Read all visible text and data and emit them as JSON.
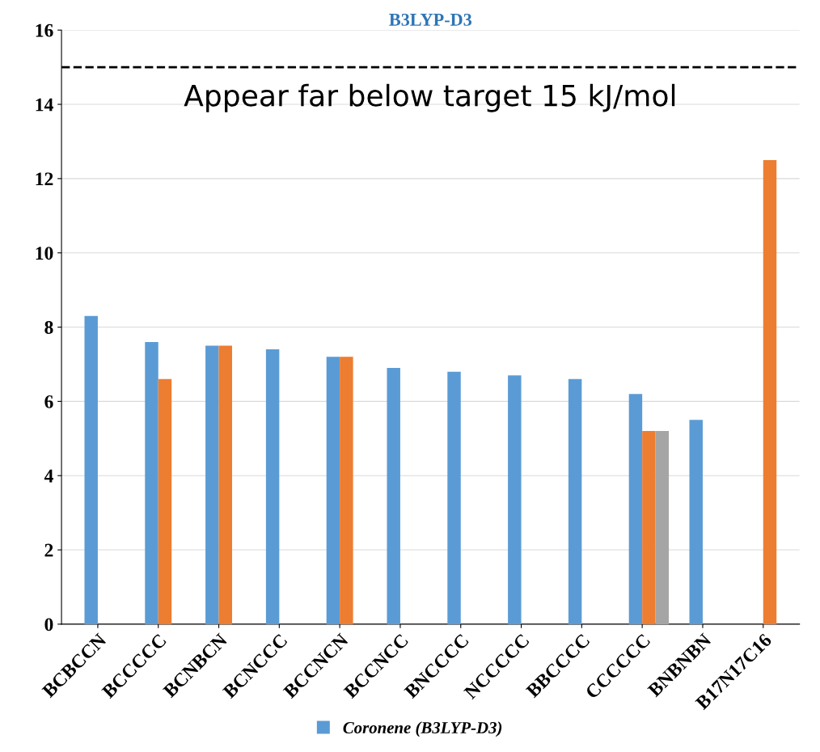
{
  "chart_data": {
    "type": "bar",
    "title": "B3LYP-D3",
    "categories": [
      "BCBCCN",
      "BCCCCC",
      "BCNBCN",
      "BCNCCC",
      "BCCNCN",
      "BCCNCC",
      "BNCCCC",
      "NCCCCC",
      "BBCCCC",
      "CCCCCC",
      "BNBNBN",
      "B17N17C16"
    ],
    "series": [
      {
        "name": "Coronene (B3LYP-D3)",
        "color": "#5b9bd5",
        "values": [
          8.3,
          7.6,
          7.5,
          7.4,
          7.2,
          6.9,
          6.8,
          6.7,
          6.6,
          6.2,
          5.5,
          null
        ]
      },
      {
        "color": "#ed7d31",
        "values": [
          null,
          6.6,
          7.5,
          null,
          7.2,
          null,
          null,
          null,
          null,
          5.2,
          null,
          12.5
        ]
      },
      {
        "color": "#a5a5a5",
        "values": [
          null,
          null,
          null,
          null,
          null,
          null,
          null,
          null,
          null,
          5.2,
          null,
          null
        ]
      }
    ],
    "ylim": [
      0,
      16
    ],
    "yticks": [
      0,
      2,
      4,
      6,
      8,
      10,
      12,
      14,
      16
    ],
    "ref_lines": [
      {
        "axis": "y",
        "value": 15,
        "label": "Appear far below target 15 kJ/mol",
        "color": "#000000",
        "line_style": "dashed"
      }
    ],
    "grid": "y",
    "legend": "bottom"
  }
}
